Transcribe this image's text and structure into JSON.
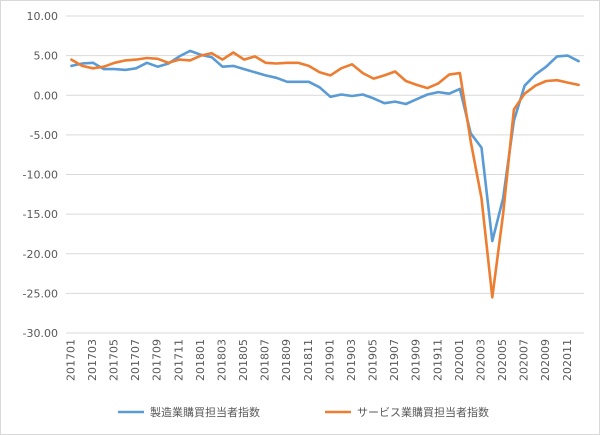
{
  "chart_data": {
    "type": "line",
    "title": "",
    "xlabel": "",
    "ylabel": "",
    "ylim": [
      -30,
      10
    ],
    "y_ticks": [
      "10.00",
      "5.00",
      "0.00",
      "-5.00",
      "-10.00",
      "-15.00",
      "-20.00",
      "-25.00",
      "-30.00"
    ],
    "grid": "horizontal",
    "legend_position": "bottom",
    "x": [
      "201701",
      "201702",
      "201703",
      "201704",
      "201705",
      "201706",
      "201707",
      "201708",
      "201709",
      "201710",
      "201711",
      "201712",
      "201801",
      "201802",
      "201803",
      "201804",
      "201805",
      "201806",
      "201807",
      "201808",
      "201809",
      "201810",
      "201811",
      "201812",
      "201901",
      "201902",
      "201903",
      "201904",
      "201905",
      "201906",
      "201907",
      "201908",
      "201909",
      "201910",
      "201911",
      "201912",
      "202001",
      "202002",
      "202003",
      "202004",
      "202005",
      "202006",
      "202007",
      "202008",
      "202009",
      "202010",
      "202011",
      "202012"
    ],
    "x_tick_labels": [
      "201701",
      "201703",
      "201705",
      "201707",
      "201709",
      "201711",
      "201801",
      "201803",
      "201805",
      "201807",
      "201809",
      "201811",
      "201901",
      "201903",
      "201905",
      "201907",
      "201909",
      "201911",
      "202001",
      "202003",
      "202005",
      "202007",
      "202009",
      "202011"
    ],
    "series": [
      {
        "name": "製造業購買担当者指数",
        "color": "#5b9bd5",
        "values": [
          3.7,
          4.0,
          4.1,
          3.3,
          3.3,
          3.2,
          3.4,
          4.1,
          3.6,
          4.0,
          4.9,
          5.6,
          5.1,
          4.8,
          3.6,
          3.7,
          3.3,
          2.9,
          2.5,
          2.2,
          1.7,
          1.7,
          1.7,
          1.0,
          -0.2,
          0.1,
          -0.1,
          0.1,
          -0.4,
          -1.0,
          -0.8,
          -1.1,
          -0.5,
          0.1,
          0.4,
          0.2,
          0.8,
          -4.8,
          -6.6,
          -18.4,
          -13.0,
          -3.2,
          1.2,
          2.6,
          3.6,
          4.9,
          5.0,
          4.3
        ]
      },
      {
        "name": "サービス業購買担当者指数",
        "color": "#ed7d31",
        "values": [
          4.5,
          3.7,
          3.4,
          3.6,
          4.1,
          4.4,
          4.5,
          4.7,
          4.6,
          4.1,
          4.5,
          4.4,
          5.0,
          5.3,
          4.5,
          5.4,
          4.5,
          4.9,
          4.1,
          4.0,
          4.1,
          4.1,
          3.7,
          2.9,
          2.5,
          3.4,
          3.9,
          2.8,
          2.1,
          2.5,
          3.0,
          1.8,
          1.3,
          0.9,
          1.5,
          2.6,
          2.8,
          -5.8,
          -13.0,
          -25.5,
          -15.0,
          -1.8,
          0.2,
          1.2,
          1.8,
          1.9,
          1.6,
          1.3
        ]
      }
    ]
  }
}
